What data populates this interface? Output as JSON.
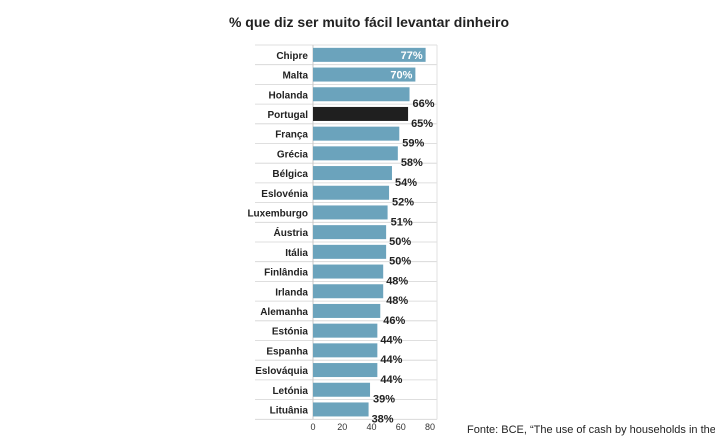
{
  "chart_data": {
    "type": "bar",
    "orientation": "horizontal",
    "title": "% que diz ser muito fácil levantar dinheiro",
    "categories": [
      "Chipre",
      "Malta",
      "Holanda",
      "Portugal",
      "França",
      "Grécia",
      "Bélgica",
      "Eslovénia",
      "Luxemburgo",
      "Áustria",
      "Itália",
      "Finlândia",
      "Irlanda",
      "Alemanha",
      "Estónia",
      "Espanha",
      "Eslováquia",
      "Letónia",
      "Lituânia"
    ],
    "values": [
      77,
      70,
      66,
      65,
      59,
      58,
      54,
      52,
      51,
      50,
      50,
      48,
      48,
      46,
      44,
      44,
      44,
      39,
      38
    ],
    "value_labels": [
      "77%",
      "70%",
      "66%",
      "65%",
      "59%",
      "58%",
      "54%",
      "52%",
      "51%",
      "50%",
      "50%",
      "48%",
      "48%",
      "46%",
      "44%",
      "44%",
      "44%",
      "39%",
      "38%"
    ],
    "highlight": "Portugal",
    "xlim": [
      0,
      80
    ],
    "xticks": [
      "0",
      "20",
      "40",
      "60",
      "80"
    ],
    "bar_color": "#6ba3bc",
    "highlight_color": "#1f1f1f",
    "xlabel": "",
    "ylabel": ""
  },
  "source": "Fonte: BCE, “The use of cash by households in the euro"
}
